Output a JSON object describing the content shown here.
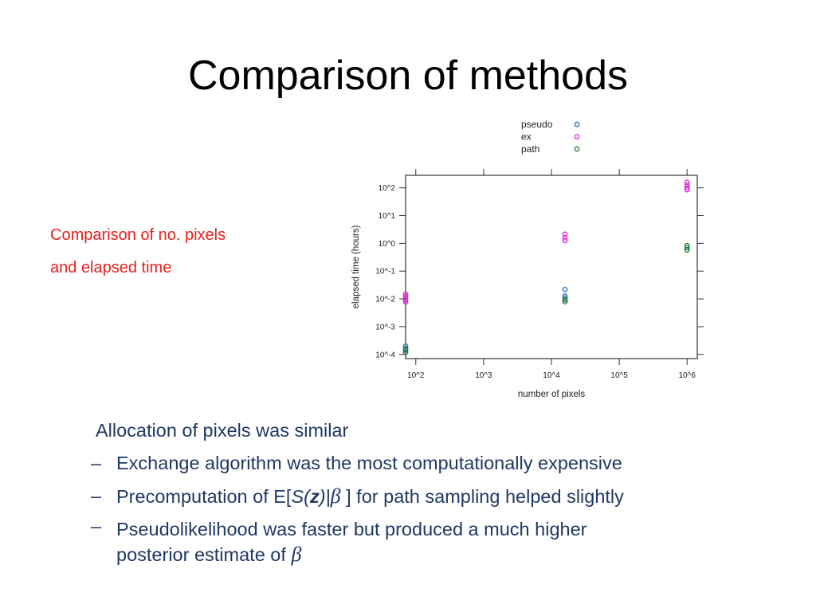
{
  "slide": {
    "title": "Comparison of methods",
    "caption_lines": [
      "Comparison of no. pixels",
      "and elapsed time"
    ]
  },
  "bullets": {
    "lead": "Allocation of pixels was similar",
    "dash": "–",
    "item1": "Exchange algorithm was the most computationally expensive",
    "item2": {
      "pre": "Precomputation of E[",
      "s": "S(",
      "z": "z",
      "close": ")|",
      "beta": "β",
      "post": " ] for path sampling helped slightly"
    },
    "item3": {
      "line1": "Pseudolikelihood was faster but produced a much higher",
      "line2": "posterior estimate of ",
      "beta": "β"
    }
  },
  "chart_data": {
    "type": "scatter",
    "xlabel": "number of pixels",
    "ylabel": "elapsed time (hours)",
    "x_scale": "log10",
    "y_scale": "log10",
    "xlim": [
      1.85,
      6.15
    ],
    "ylim": [
      -4.15,
      2.45
    ],
    "x_ticks": [
      2,
      3,
      4,
      5,
      6
    ],
    "x_tick_labels": [
      "10^2",
      "10^3",
      "10^4",
      "10^5",
      "10^6"
    ],
    "y_ticks": [
      2,
      1,
      0,
      -1,
      -2,
      -3,
      -4
    ],
    "y_tick_labels": [
      "10^2",
      "10^1",
      "10^0",
      "10^-1",
      "10^-2",
      "10^-3",
      "10^-4"
    ],
    "legend_position": "top-right, outside plot",
    "marker": "open circle",
    "series": [
      {
        "name": "pseudo",
        "color": "#1f6fb4",
        "points": [
          [
            1.85,
            -3.7
          ],
          [
            1.85,
            -3.78
          ],
          [
            1.85,
            -3.85
          ],
          [
            4.2,
            -1.66
          ],
          [
            4.2,
            -1.9
          ],
          [
            4.2,
            -1.97
          ]
        ]
      },
      {
        "name": "ex",
        "color": "#e020d8",
        "points": [
          [
            1.85,
            -1.83
          ],
          [
            1.85,
            -1.9
          ],
          [
            1.85,
            -1.97
          ],
          [
            1.85,
            -2.04
          ],
          [
            1.85,
            -2.11
          ],
          [
            4.2,
            0.33
          ],
          [
            4.2,
            0.2
          ],
          [
            4.2,
            0.1
          ],
          [
            6.0,
            2.2
          ],
          [
            6.0,
            2.1
          ],
          [
            6.0,
            2.0
          ],
          [
            6.0,
            1.93
          ]
        ]
      },
      {
        "name": "path",
        "color": "#1e7a32",
        "points": [
          [
            1.85,
            -3.83
          ],
          [
            1.85,
            -3.92
          ],
          [
            4.2,
            -2.03
          ],
          [
            4.2,
            -2.1
          ],
          [
            6.0,
            -0.08
          ],
          [
            6.0,
            -0.16
          ],
          [
            6.0,
            -0.24
          ]
        ]
      }
    ]
  }
}
